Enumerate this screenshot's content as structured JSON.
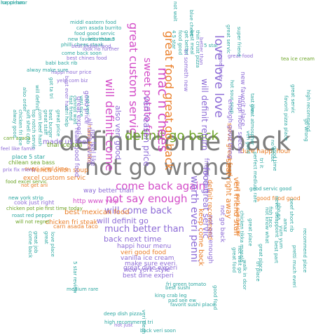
{
  "colors": {
    "gray": "#7f7f7f",
    "green": "#6aa324",
    "purple": "#8d6bd6",
    "magenta": "#d34cc8",
    "orange": "#ea7f2a",
    "teal": "#2aa6a0",
    "red": "#d94a4a"
  },
  "words": [
    {
      "text": "definit come back",
      "color": "gray"
    },
    {
      "text": "not go wrong",
      "color": "gray"
    },
    {
      "text": "definit go back",
      "color": "green"
    },
    {
      "text": "great food great go back",
      "color": "orange"
    },
    {
      "text": "love love love",
      "color": "purple"
    },
    {
      "text": "great custom servic",
      "color": "magenta"
    },
    {
      "text": "will definit come",
      "color": "magenta"
    },
    {
      "text": "sweet potato fri",
      "color": "magenta"
    },
    {
      "text": "mac n chees",
      "color": "magenta"
    },
    {
      "text": "come back again",
      "color": "magenta"
    },
    {
      "text": "not say enough",
      "color": "magenta"
    },
    {
      "text": "veri reason price",
      "color": "purple"
    },
    {
      "text": "worth everi penni",
      "color": "purple"
    },
    {
      "text": "food great servic",
      "color": "purple"
    },
    {
      "text": "will definit return",
      "color": "purple"
    },
    {
      "text": "will come back",
      "color": "purple"
    },
    {
      "text": "much better than",
      "color": "purple"
    },
    {
      "text": "will definit go",
      "color": "purple"
    },
    {
      "text": "back next time",
      "color": "purple"
    },
    {
      "text": "also veri good",
      "color": "purple"
    },
    {
      "text": "seat right away",
      "color": "orange"
    },
    {
      "text": "veri friend staff",
      "color": "orange"
    },
    {
      "text": "keep come back",
      "color": "orange"
    },
    {
      "text": "best mexican food",
      "color": "orange"
    },
    {
      "text": "excel custom servic",
      "color": "orange"
    },
    {
      "text": "chicken fri steak",
      "color": "orange"
    },
    {
      "text": "dure happi hour",
      "color": "orange"
    },
    {
      "text": "french onion soup",
      "color": "orange"
    },
    {
      "text": "made us feel",
      "color": "purple"
    },
    {
      "text": "servic great food",
      "color": "orange"
    },
    {
      "text": "realli good food",
      "color": "purple"
    },
    {
      "text": "friend staff",
      "color": "purple"
    },
    {
      "text": "happi hour menu",
      "color": "purple"
    },
    {
      "text": "veri good food",
      "color": "orange"
    },
    {
      "text": "vanilla ice cream",
      "color": "purple"
    },
    {
      "text": "make sure everi",
      "color": "purple"
    },
    {
      "text": "best dine experi",
      "color": "purple"
    },
    {
      "text": "great dine experi",
      "color": "purple"
    },
    {
      "text": "new york style",
      "color": "purple"
    },
    {
      "text": "http www yelp",
      "color": "magenta"
    },
    {
      "text": "way better than",
      "color": "purple"
    },
    {
      "text": "made feel like",
      "color": "orange"
    },
    {
      "text": "everi singl time",
      "color": "orange"
    },
    {
      "text": "carn asada taco",
      "color": "orange"
    },
    {
      "text": "place 5 star",
      "color": "teal"
    },
    {
      "text": "thai ice tea",
      "color": "green"
    },
    {
      "text": "chilean sea bass",
      "color": "green"
    },
    {
      "text": "good food good",
      "color": "orange"
    },
    {
      "text": "happi hour special",
      "color": "purple"
    },
    {
      "text": "new favorit place",
      "color": "purple"
    },
    {
      "text": "good servic good",
      "color": "teal"
    },
    {
      "text": "enough good thing",
      "color": "purple"
    },
    {
      "text": "definit recommend",
      "color": "orange"
    },
    {
      "text": "pull pork sandwich",
      "color": "orange"
    },
    {
      "text": "not get enough",
      "color": "purple"
    },
    {
      "text": "not go back",
      "color": "purple"
    },
    {
      "text": "not feel like",
      "color": "purple"
    },
    {
      "text": "all time favorit",
      "color": "purple"
    },
    {
      "text": "great experi",
      "color": "purple"
    },
    {
      "text": "good price",
      "color": "purple"
    },
    {
      "text": "cook just right",
      "color": "purple"
    },
    {
      "text": "chicken pot pie",
      "color": "green"
    },
    {
      "text": "first time today",
      "color": "green"
    },
    {
      "text": "roast red pepper",
      "color": "teal"
    },
    {
      "text": "will not regret",
      "color": "green"
    },
    {
      "text": "new york strip",
      "color": "teal"
    },
    {
      "text": "prix fix menu",
      "color": "purple"
    },
    {
      "text": "carn asada",
      "color": "green"
    },
    {
      "text": "feel like famili",
      "color": "purple"
    },
    {
      "text": "food excel servic",
      "color": "green"
    },
    {
      "text": "not get ani",
      "color": "orange"
    },
    {
      "text": "middl eastern food",
      "color": "teal"
    },
    {
      "text": "carn asada burrito",
      "color": "teal"
    },
    {
      "text": "food good servic",
      "color": "teal"
    },
    {
      "text": "new favorit restaur",
      "color": "teal"
    },
    {
      "text": "philli chees steak",
      "color": "teal"
    },
    {
      "text": "less than 5",
      "color": "teal"
    },
    {
      "text": "best indian food",
      "color": "purple"
    },
    {
      "text": "look no further",
      "color": "purple"
    },
    {
      "text": "come back soon",
      "color": "teal"
    },
    {
      "text": "best chines food",
      "color": "purple"
    },
    {
      "text": "happi hour price",
      "color": "purple"
    },
    {
      "text": "yelp com biz",
      "color": "purple"
    },
    {
      "text": "babi back rib",
      "color": "teal"
    },
    {
      "text": "alway make sure",
      "color": "teal"
    },
    {
      "text": "got ta tri",
      "color": "teal"
    },
    {
      "text": "best ever had",
      "color": "purple"
    },
    {
      "text": "tea ice cream",
      "color": "green"
    },
    {
      "text": "5 star review",
      "color": "teal"
    },
    {
      "text": "veri clean",
      "color": "teal"
    },
    {
      "text": "not just",
      "color": "purple"
    },
    {
      "text": "deep dish pizza",
      "color": "teal"
    },
    {
      "text": "favorit sushi place",
      "color": "teal"
    },
    {
      "text": "pad see ew",
      "color": "teal"
    },
    {
      "text": "king crab leg",
      "color": "teal"
    },
    {
      "text": "best sushi",
      "color": "teal"
    },
    {
      "text": "fri green tomato",
      "color": "teal"
    },
    {
      "text": "back veri soon",
      "color": "teal"
    },
    {
      "text": "high recommend tri",
      "color": "teal"
    },
    {
      "text": "beef short rib",
      "color": "teal"
    },
    {
      "text": "pretti much everi",
      "color": "teal"
    },
    {
      "text": "recommend place",
      "color": "teal"
    },
    {
      "text": "high recommend",
      "color": "teal"
    },
    {
      "text": "favorit pizza place",
      "color": "teal"
    },
    {
      "text": "great servic",
      "color": "teal"
    },
    {
      "text": "no doubt",
      "color": "teal"
    },
    {
      "text": "walk in door",
      "color": "teal"
    },
    {
      "text": "not wait go",
      "color": "teal"
    },
    {
      "text": "tri someth new",
      "color": "purple"
    },
    {
      "text": "creme brule",
      "color": "purple"
    },
    {
      "text": "5 star",
      "color": "teal"
    },
    {
      "text": "great food",
      "color": "purple"
    },
    {
      "text": "hot sour soup",
      "color": "teal"
    },
    {
      "text": "super friend",
      "color": "teal"
    },
    {
      "text": "better than",
      "color": "purple"
    },
    {
      "text": "not know what",
      "color": "teal"
    },
    {
      "text": "pho ga",
      "color": "teal"
    },
    {
      "text": "good time",
      "color": "teal"
    },
    {
      "text": "yum yum",
      "color": "teal"
    },
    {
      "text": "tri it",
      "color": "teal"
    },
    {
      "text": "fish taco",
      "color": "teal"
    },
    {
      "text": "great place",
      "color": "teal"
    },
    {
      "text": "great food",
      "color": "teal"
    },
    {
      "text": "chicken tikka masala",
      "color": "teal"
    },
    {
      "text": "soft shell crab",
      "color": "teal"
    },
    {
      "text": "chicken fri rice",
      "color": "teal"
    },
    {
      "text": "great staff",
      "color": "teal"
    },
    {
      "text": "corn beef hash",
      "color": "teal"
    },
    {
      "text": "best burger",
      "color": "teal"
    },
    {
      "text": "top notch servic",
      "color": "teal"
    },
    {
      "text": "alway good",
      "color": "teal"
    },
    {
      "text": "great price",
      "color": "teal"
    },
    {
      "text": "also order",
      "color": "teal"
    },
    {
      "text": "will definit",
      "color": "teal"
    },
    {
      "text": "veri help",
      "color": "teal"
    },
    {
      "text": "4 5 star",
      "color": "teal"
    },
    {
      "text": "food good",
      "color": "teal"
    },
    {
      "text": "get better",
      "color": "teal"
    },
    {
      "text": "best meal",
      "color": "teal"
    },
    {
      "text": "thin crust pizza",
      "color": "teal"
    },
    {
      "text": "blue chees",
      "color": "teal"
    },
    {
      "text": "not veri",
      "color": "teal"
    },
    {
      "text": "veri nice",
      "color": "teal"
    },
    {
      "text": "cannot wait",
      "color": "teal"
    },
    {
      "text": "fast friend",
      "color": "teal"
    },
    {
      "text": "medium rare",
      "color": "teal"
    },
    {
      "text": "great",
      "color": "teal"
    },
    {
      "text": "love place",
      "color": "teal"
    },
    {
      "text": "great job",
      "color": "teal"
    },
    {
      "text": "come back",
      "color": "teal"
    },
    {
      "text": "good food",
      "color": "teal"
    },
    {
      "text": "tast like",
      "color": "teal"
    },
    {
      "text": "great atmospher",
      "color": "teal"
    },
    {
      "text": "best part",
      "color": "teal"
    },
    {
      "text": "tri place",
      "color": "teal"
    },
    {
      "text": "veri good",
      "color": "teal"
    },
    {
      "text": "perfect medium rare",
      "color": "teal"
    },
    {
      "text": "great place",
      "color": "teal"
    },
    {
      "text": "amaz",
      "color": "teal"
    },
    {
      "text": "never disappoint",
      "color": "teal"
    },
    {
      "text": "go wrong",
      "color": "teal"
    },
    {
      "text": "not wait",
      "color": "teal"
    },
    {
      "text": "great servic",
      "color": "teal"
    },
    {
      "text": "happi hour",
      "color": "teal"
    },
    {
      "text": "ice cream",
      "color": "teal"
    }
  ]
}
